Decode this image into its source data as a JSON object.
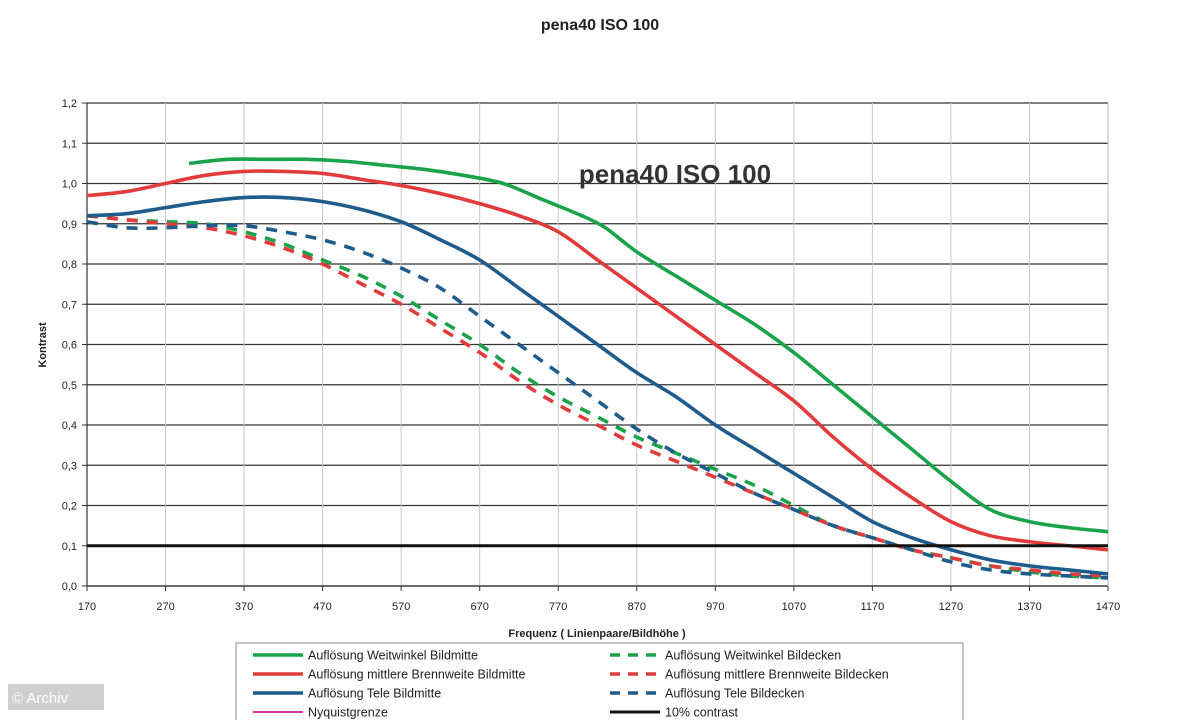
{
  "chart_data": {
    "type": "line",
    "title": "pena40 ISO 100",
    "inner_title": "pena40 ISO 100",
    "xlabel": "Frequenz ( Linienpaare/Bildhöhe )",
    "ylabel": "Kontrast",
    "xlim": [
      170,
      1470
    ],
    "ylim": [
      0,
      1.2
    ],
    "x_ticks": [
      "170",
      "270",
      "370",
      "470",
      "570",
      "670",
      "770",
      "870",
      "970",
      "1070",
      "1170",
      "1270",
      "1370",
      "1470"
    ],
    "y_ticks": [
      "0,0",
      "0,1",
      "0,2",
      "0,3",
      "0,4",
      "0,5",
      "0,6",
      "0,7",
      "0,8",
      "0,9",
      "1,0",
      "1,1",
      "1,2"
    ],
    "grid": "horizontal",
    "legend_position": "bottom",
    "series": [
      {
        "name": "Auflösung Weitwinkel Bildmitte",
        "color": "#1aa34a",
        "style": "solid",
        "x": [
          300,
          350,
          400,
          450,
          500,
          550,
          600,
          650,
          700,
          750,
          800,
          830,
          870,
          920,
          970,
          1020,
          1070,
          1120,
          1170,
          1220,
          1270,
          1320,
          1370,
          1420,
          1470
        ],
        "y": [
          1.05,
          1.06,
          1.06,
          1.06,
          1.055,
          1.045,
          1.035,
          1.02,
          1.0,
          0.96,
          0.92,
          0.89,
          0.83,
          0.77,
          0.71,
          0.65,
          0.58,
          0.5,
          0.42,
          0.34,
          0.26,
          0.19,
          0.16,
          0.145,
          0.135
        ]
      },
      {
        "name": "Auflösung mittlere Brennweite Bildmitte",
        "color": "#e23b3b",
        "style": "solid",
        "x": [
          170,
          220,
          270,
          320,
          370,
          420,
          470,
          520,
          570,
          620,
          670,
          720,
          770,
          820,
          870,
          920,
          970,
          1020,
          1070,
          1120,
          1170,
          1220,
          1270,
          1320,
          1370,
          1420,
          1470
        ],
        "y": [
          0.97,
          0.98,
          1.0,
          1.02,
          1.03,
          1.03,
          1.025,
          1.01,
          0.995,
          0.975,
          0.95,
          0.92,
          0.88,
          0.81,
          0.74,
          0.67,
          0.6,
          0.53,
          0.46,
          0.37,
          0.29,
          0.22,
          0.16,
          0.125,
          0.11,
          0.1,
          0.09
        ]
      },
      {
        "name": "Auflösung Tele Bildmitte",
        "color": "#1f5c8b",
        "style": "solid",
        "x": [
          170,
          220,
          270,
          320,
          370,
          420,
          470,
          520,
          570,
          620,
          670,
          720,
          770,
          820,
          870,
          920,
          970,
          1020,
          1070,
          1120,
          1170,
          1220,
          1270,
          1320,
          1370,
          1420,
          1470
        ],
        "y": [
          0.92,
          0.925,
          0.94,
          0.955,
          0.965,
          0.965,
          0.955,
          0.935,
          0.905,
          0.86,
          0.81,
          0.74,
          0.67,
          0.6,
          0.53,
          0.47,
          0.4,
          0.34,
          0.28,
          0.22,
          0.16,
          0.12,
          0.09,
          0.065,
          0.05,
          0.04,
          0.03
        ]
      },
      {
        "name": "Auflösung Weitwinkel Bildecken",
        "color": "#1aa34a",
        "style": "dashed",
        "x": [
          170,
          220,
          270,
          320,
          370,
          420,
          470,
          520,
          570,
          620,
          670,
          720,
          770,
          820,
          870,
          920,
          970,
          1020,
          1070,
          1120,
          1170,
          1220,
          1270,
          1320,
          1370,
          1420,
          1470
        ],
        "y": [
          0.92,
          0.91,
          0.905,
          0.9,
          0.88,
          0.85,
          0.81,
          0.77,
          0.72,
          0.66,
          0.6,
          0.53,
          0.47,
          0.42,
          0.37,
          0.33,
          0.29,
          0.25,
          0.2,
          0.15,
          0.12,
          0.09,
          0.07,
          0.05,
          0.035,
          0.025,
          0.02
        ]
      },
      {
        "name": "Auflösung mittlere Brennweite Bildecken",
        "color": "#e23b3b",
        "style": "dashed",
        "x": [
          170,
          220,
          270,
          320,
          370,
          420,
          470,
          520,
          570,
          620,
          670,
          720,
          770,
          820,
          870,
          920,
          970,
          1020,
          1070,
          1120,
          1170,
          1220,
          1270,
          1320,
          1370,
          1420,
          1470
        ],
        "y": [
          0.92,
          0.91,
          0.9,
          0.89,
          0.87,
          0.84,
          0.8,
          0.75,
          0.7,
          0.64,
          0.58,
          0.51,
          0.45,
          0.4,
          0.35,
          0.31,
          0.27,
          0.23,
          0.19,
          0.15,
          0.12,
          0.09,
          0.07,
          0.05,
          0.04,
          0.03,
          0.025
        ]
      },
      {
        "name": "Auflösung Tele Bildecken",
        "color": "#1f5c8b",
        "style": "dashed",
        "x": [
          170,
          220,
          270,
          320,
          370,
          420,
          470,
          520,
          570,
          620,
          670,
          720,
          770,
          820,
          870,
          920,
          970,
          1020,
          1070,
          1120,
          1170,
          1220,
          1270,
          1320,
          1370,
          1420,
          1470
        ],
        "y": [
          0.905,
          0.89,
          0.89,
          0.895,
          0.895,
          0.88,
          0.86,
          0.83,
          0.79,
          0.74,
          0.67,
          0.6,
          0.53,
          0.46,
          0.39,
          0.33,
          0.28,
          0.23,
          0.19,
          0.15,
          0.12,
          0.09,
          0.06,
          0.04,
          0.03,
          0.025,
          0.02
        ]
      },
      {
        "name": "Nyquistgrenze",
        "color": "#e0329c",
        "style": "solid",
        "x": [],
        "y": []
      },
      {
        "name": "10% contrast",
        "color": "#111111",
        "style": "solid",
        "x": [
          170,
          1470
        ],
        "y": [
          0.1,
          0.1
        ]
      }
    ]
  },
  "watermark": "© Archiv"
}
